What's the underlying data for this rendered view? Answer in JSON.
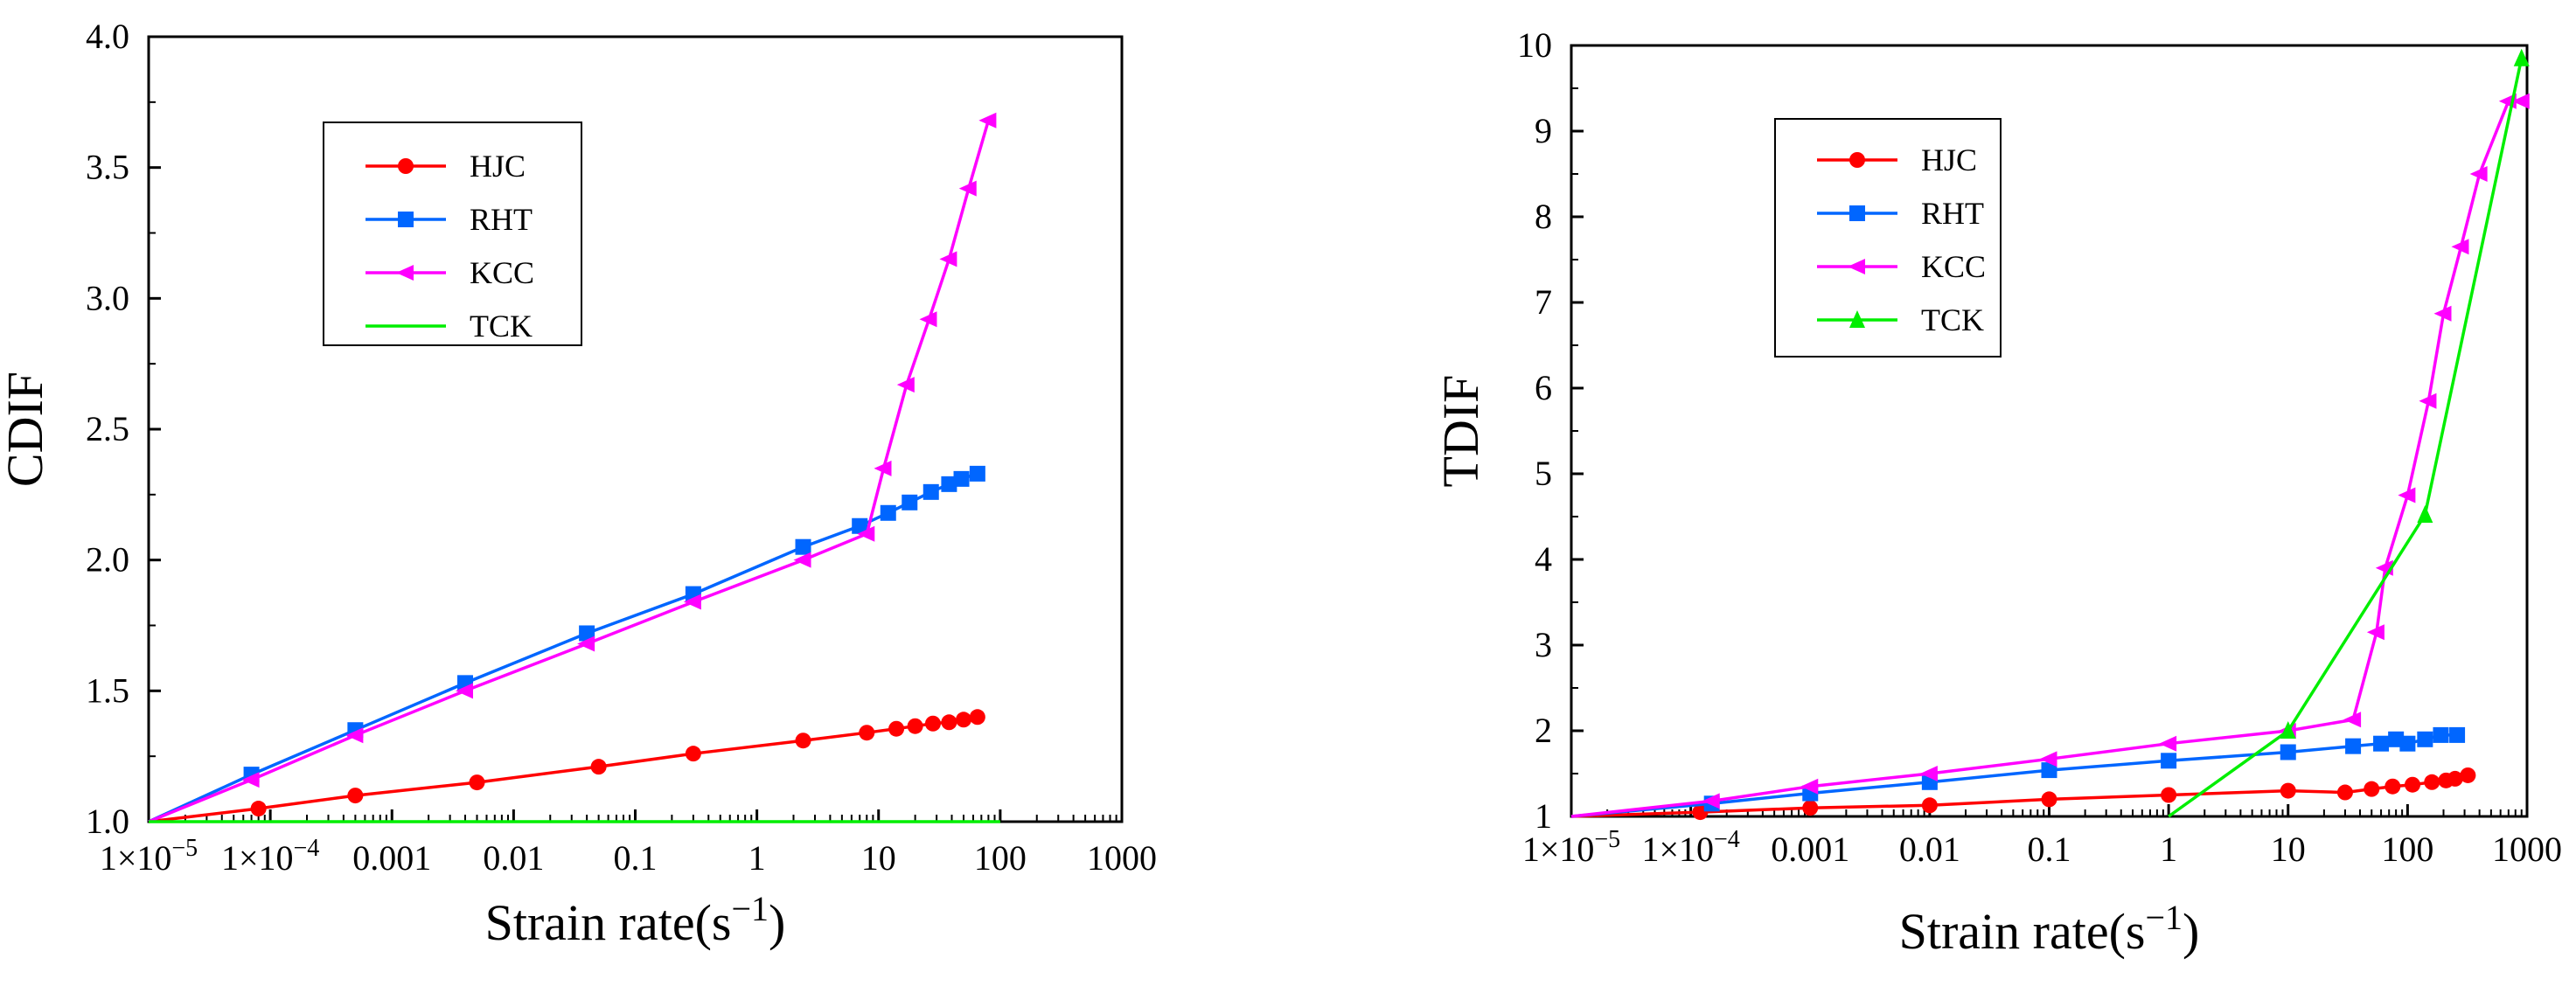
{
  "chart_data": [
    {
      "type": "line",
      "xscale": "log",
      "xlabel": "Strain rate(s",
      "xlabel_sup": "−1",
      "xlabel_end": ")",
      "ylabel": "CDIF",
      "xlim": [
        1e-05,
        1000
      ],
      "ylim": [
        1.0,
        4.0
      ],
      "xticks": [
        1e-05,
        0.0001,
        0.001,
        0.01,
        0.1,
        1,
        10,
        100,
        1000
      ],
      "xtick_labels": [
        "1×10",
        "1×10",
        "0.001",
        "0.01",
        "0.1",
        "1",
        "10",
        "100",
        "1000"
      ],
      "xtick_label_sups": [
        "−5",
        "−4",
        "",
        "",
        "",
        "",
        "",
        "",
        ""
      ],
      "yticks": [
        1.0,
        1.5,
        2.0,
        2.5,
        3.0,
        3.5,
        4.0
      ],
      "ytick_labels": [
        "1.0",
        "1.5",
        "2.0",
        "2.5",
        "3.0",
        "3.5",
        "4.0"
      ],
      "legend_position": "upper-left",
      "series": [
        {
          "name": "HJC",
          "color": "#ff0000",
          "marker": "circle",
          "x": [
            1e-05,
            8e-05,
            0.0005,
            0.005,
            0.05,
            0.3,
            2.4,
            8,
            14,
            20,
            28,
            38,
            50,
            65
          ],
          "y": [
            1.0,
            1.05,
            1.1,
            1.15,
            1.21,
            1.26,
            1.31,
            1.34,
            1.355,
            1.365,
            1.375,
            1.38,
            1.39,
            1.4
          ],
          "marker_from": 1
        },
        {
          "name": "RHT",
          "color": "#0066ff",
          "marker": "square",
          "x": [
            1e-05,
            7e-05,
            0.0005,
            0.004,
            0.04,
            0.3,
            2.4,
            7,
            12,
            18,
            27,
            38,
            48,
            65
          ],
          "y": [
            1.0,
            1.18,
            1.35,
            1.53,
            1.72,
            1.87,
            2.05,
            2.13,
            2.18,
            2.22,
            2.26,
            2.29,
            2.31,
            2.33
          ],
          "marker_from": 1
        },
        {
          "name": "KCC",
          "color": "#ff00ff",
          "marker": "triangle-left",
          "x": [
            1e-05,
            7e-05,
            0.0005,
            0.004,
            0.04,
            0.3,
            2.4,
            8,
            11,
            17,
            26,
            38,
            55,
            80
          ],
          "y": [
            1.0,
            1.16,
            1.33,
            1.5,
            1.68,
            1.84,
            2.0,
            2.1,
            2.35,
            2.67,
            2.92,
            3.15,
            3.42,
            3.68
          ],
          "marker_from": 1
        },
        {
          "name": "TCK",
          "color": "#00ee00",
          "marker": "none",
          "x": [
            1e-05,
            100
          ],
          "y": [
            1.0,
            1.0
          ],
          "marker_from": 99
        }
      ]
    },
    {
      "type": "line",
      "xscale": "log",
      "xlabel": "Strain rate(s",
      "xlabel_sup": "−1",
      "xlabel_end": ")",
      "ylabel": "TDIF",
      "xlim": [
        1e-05,
        1000
      ],
      "ylim": [
        1,
        10
      ],
      "xticks": [
        1e-05,
        0.0001,
        0.001,
        0.01,
        0.1,
        1,
        10,
        100,
        1000
      ],
      "xtick_labels": [
        "1×10",
        "1×10",
        "0.001",
        "0.01",
        "0.1",
        "1",
        "10",
        "100",
        "1000"
      ],
      "xtick_label_sups": [
        "−5",
        "−4",
        "",
        "",
        "",
        "",
        "",
        "",
        ""
      ],
      "yticks": [
        1,
        2,
        3,
        4,
        5,
        6,
        7,
        8,
        9,
        10
      ],
      "ytick_labels": [
        "1",
        "2",
        "3",
        "4",
        "5",
        "6",
        "7",
        "8",
        "9",
        "10"
      ],
      "legend_position": "upper-left",
      "series": [
        {
          "name": "HJC",
          "color": "#ff0000",
          "marker": "circle",
          "x": [
            1e-05,
            0.00012,
            0.001,
            0.01,
            0.1,
            1,
            10,
            30,
            50,
            75,
            110,
            160,
            210,
            250,
            320
          ],
          "y": [
            1.0,
            1.05,
            1.1,
            1.13,
            1.2,
            1.25,
            1.3,
            1.28,
            1.32,
            1.35,
            1.37,
            1.4,
            1.42,
            1.44,
            1.48
          ],
          "marker_from": 1
        },
        {
          "name": "RHT",
          "color": "#0066ff",
          "marker": "square",
          "x": [
            1e-05,
            0.00015,
            0.001,
            0.01,
            0.1,
            1,
            10,
            35,
            60,
            80,
            100,
            140,
            190,
            260
          ],
          "y": [
            1.0,
            1.15,
            1.27,
            1.4,
            1.54,
            1.65,
            1.75,
            1.82,
            1.85,
            1.9,
            1.85,
            1.9,
            1.95,
            1.95
          ],
          "marker_from": 1
        },
        {
          "name": "KCC",
          "color": "#ff00ff",
          "marker": "triangle-left",
          "x": [
            1e-05,
            0.00015,
            0.001,
            0.01,
            0.1,
            1,
            10,
            35,
            55,
            65,
            100,
            150,
            200,
            280,
            400,
            700,
            900
          ],
          "y": [
            1.0,
            1.18,
            1.35,
            1.5,
            1.67,
            1.85,
            2.0,
            2.13,
            3.15,
            3.9,
            4.75,
            5.85,
            6.87,
            7.65,
            8.5,
            9.35,
            9.35
          ],
          "marker_from": 1
        },
        {
          "name": "TCK",
          "color": "#00ee00",
          "marker": "triangle-up",
          "x": [
            1,
            10,
            140,
            900
          ],
          "y": [
            1.0,
            2.0,
            4.52,
            9.85
          ],
          "marker_from": 1
        }
      ]
    }
  ]
}
